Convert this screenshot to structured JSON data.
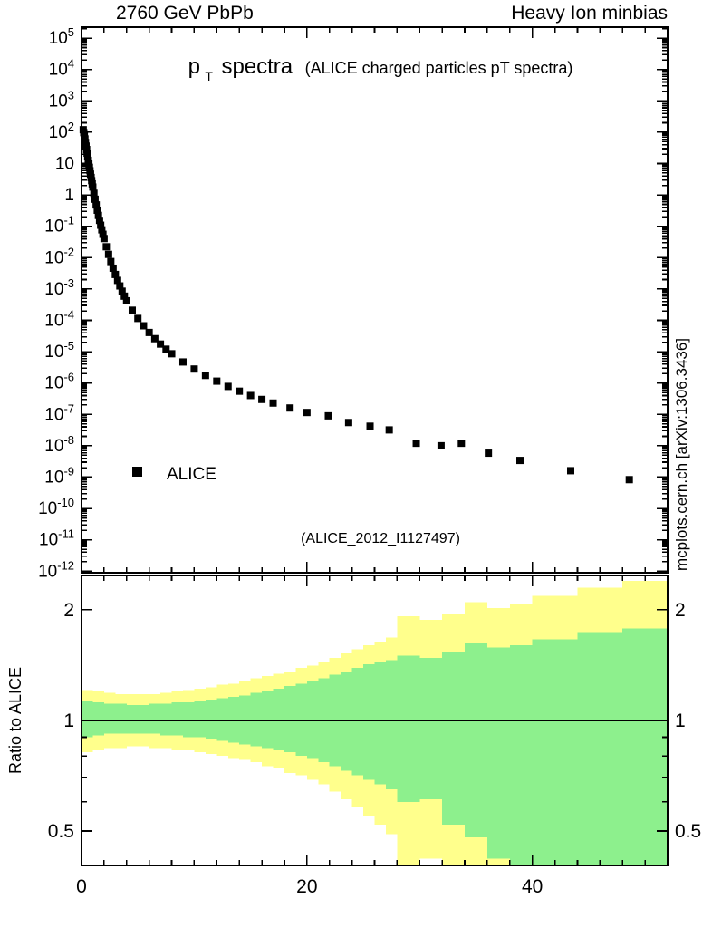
{
  "header": {
    "left": "2760 GeV PbPb",
    "right": "Heavy Ion minbias"
  },
  "title": {
    "p": "p",
    "sub": "T",
    "main": "spectra",
    "detail": "(ALICE charged particles pT spectra)"
  },
  "legend": {
    "label": "ALICE"
  },
  "watermark": "(ALICE_2012_I1127497)",
  "side_note": "mcplots.cern.ch [arXiv:1306.3436]",
  "ratio_ylabel": "Ratio to ALICE",
  "colors": {
    "marker": "#000000",
    "band_outer": "#ffff8c",
    "band_inner": "#8df08d",
    "frame": "#000000",
    "watermark": "#b5b5b5",
    "side_note": "#8f8f8f"
  },
  "chart_data": {
    "type": "scatter",
    "title": "pT spectra (ALICE charged particles pT spectra)",
    "panels": [
      {
        "name": "spectrum",
        "type": "scatter",
        "xlim": [
          0,
          52
        ],
        "ylog": true,
        "ylim": [
          1e-12,
          100000.0
        ],
        "xticks": [
          0,
          20,
          40
        ],
        "x_minor_step": 2,
        "legend_position": "left-middle",
        "series": [
          {
            "name": "ALICE",
            "marker": "filled-square",
            "color": "#000000",
            "points": [
              [
                0.15,
                120
              ],
              [
                0.2,
                97
              ],
              [
                0.25,
                78
              ],
              [
                0.3,
                61
              ],
              [
                0.35,
                47
              ],
              [
                0.4,
                36
              ],
              [
                0.45,
                28
              ],
              [
                0.5,
                21.5
              ],
              [
                0.55,
                16.5
              ],
              [
                0.6,
                12.7
              ],
              [
                0.65,
                9.8
              ],
              [
                0.7,
                7.6
              ],
              [
                0.75,
                5.9
              ],
              [
                0.8,
                4.6
              ],
              [
                0.85,
                3.6
              ],
              [
                0.9,
                2.85
              ],
              [
                0.95,
                2.25
              ],
              [
                1.0,
                1.78
              ],
              [
                1.1,
                1.13
              ],
              [
                1.2,
                0.73
              ],
              [
                1.3,
                0.48
              ],
              [
                1.4,
                0.325
              ],
              [
                1.5,
                0.222
              ],
              [
                1.6,
                0.154
              ],
              [
                1.7,
                0.108
              ],
              [
                1.8,
                0.077
              ],
              [
                1.9,
                0.0555
              ],
              [
                2.0,
                0.0405
              ],
              [
                2.2,
                0.0222
              ],
              [
                2.4,
                0.0127
              ],
              [
                2.6,
                0.0075
              ],
              [
                2.8,
                0.0046
              ],
              [
                3.0,
                0.0029
              ],
              [
                3.2,
                0.00188
              ],
              [
                3.4,
                0.00125
              ],
              [
                3.6,
                0.00085
              ],
              [
                3.8,
                0.00059
              ],
              [
                4.0,
                0.00042
              ],
              [
                4.5,
                0.00021
              ],
              [
                5.0,
                0.000115
              ],
              [
                5.5,
                6.7e-05
              ],
              [
                6.0,
                4.1e-05
              ],
              [
                6.5,
                2.6e-05
              ],
              [
                7.0,
                1.75e-05
              ],
              [
                7.5,
                1.2e-05
              ],
              [
                8.0,
                8.6e-06
              ],
              [
                9.0,
                4.7e-06
              ],
              [
                10.0,
                2.8e-06
              ],
              [
                11.0,
                1.75e-06
              ],
              [
                12.0,
                1.15e-06
              ],
              [
                13.0,
                7.8e-07
              ],
              [
                14.0,
                5.5e-07
              ],
              [
                15.0,
                4e-07
              ],
              [
                16.0,
                3e-07
              ],
              [
                17.0,
                2.3e-07
              ],
              [
                18.5,
                1.6e-07
              ],
              [
                20.0,
                1.15e-07
              ],
              [
                21.9,
                9e-08
              ],
              [
                23.7,
                5.5e-08
              ],
              [
                25.6,
                4.2e-08
              ],
              [
                27.3,
                3.2e-08
              ],
              [
                29.7,
                1.2e-08
              ],
              [
                31.9,
                1e-08
              ],
              [
                33.7,
                1.2e-08
              ],
              [
                36.1,
                5.8e-09
              ],
              [
                38.9,
                3.4e-09
              ],
              [
                43.4,
                1.6e-09
              ],
              [
                48.6,
                8.3e-10
              ]
            ]
          }
        ]
      },
      {
        "name": "ratio",
        "type": "band-steps",
        "ylabel": "Ratio to ALICE",
        "xlim": [
          0,
          52
        ],
        "ylog": true,
        "ylim": [
          0.403,
          2.48
        ],
        "yticks": [
          0.5,
          1,
          2
        ],
        "y_minor_ticks": [
          0.6,
          0.7,
          0.8,
          0.9
        ],
        "xticks": [
          0,
          20,
          40
        ],
        "x_minor_step": 2,
        "reference_line": 1.0,
        "bands": [
          {
            "x0": 0,
            "x1": 1,
            "outer": [
              0.82,
              1.21
            ],
            "inner": [
              0.9,
              1.13
            ]
          },
          {
            "x0": 1,
            "x1": 2,
            "outer": [
              0.83,
              1.2
            ],
            "inner": [
              0.91,
              1.12
            ]
          },
          {
            "x0": 2,
            "x1": 3,
            "outer": [
              0.84,
              1.19
            ],
            "inner": [
              0.92,
              1.11
            ]
          },
          {
            "x0": 3,
            "x1": 4,
            "outer": [
              0.84,
              1.18
            ],
            "inner": [
              0.92,
              1.11
            ]
          },
          {
            "x0": 4,
            "x1": 5,
            "outer": [
              0.85,
              1.18
            ],
            "inner": [
              0.92,
              1.1
            ]
          },
          {
            "x0": 5,
            "x1": 6,
            "outer": [
              0.85,
              1.18
            ],
            "inner": [
              0.92,
              1.1
            ]
          },
          {
            "x0": 6,
            "x1": 7,
            "outer": [
              0.84,
              1.18
            ],
            "inner": [
              0.92,
              1.11
            ]
          },
          {
            "x0": 7,
            "x1": 8,
            "outer": [
              0.84,
              1.19
            ],
            "inner": [
              0.91,
              1.11
            ]
          },
          {
            "x0": 8,
            "x1": 9,
            "outer": [
              0.83,
              1.2
            ],
            "inner": [
              0.91,
              1.12
            ]
          },
          {
            "x0": 9,
            "x1": 10,
            "outer": [
              0.83,
              1.21
            ],
            "inner": [
              0.9,
              1.12
            ]
          },
          {
            "x0": 10,
            "x1": 11,
            "outer": [
              0.82,
              1.22
            ],
            "inner": [
              0.9,
              1.13
            ]
          },
          {
            "x0": 11,
            "x1": 12,
            "outer": [
              0.81,
              1.23
            ],
            "inner": [
              0.89,
              1.14
            ]
          },
          {
            "x0": 12,
            "x1": 13,
            "outer": [
              0.8,
              1.25
            ],
            "inner": [
              0.88,
              1.15
            ]
          },
          {
            "x0": 13,
            "x1": 14,
            "outer": [
              0.79,
              1.26
            ],
            "inner": [
              0.87,
              1.16
            ]
          },
          {
            "x0": 14,
            "x1": 15,
            "outer": [
              0.78,
              1.28
            ],
            "inner": [
              0.86,
              1.17
            ]
          },
          {
            "x0": 15,
            "x1": 16,
            "outer": [
              0.77,
              1.3
            ],
            "inner": [
              0.85,
              1.19
            ]
          },
          {
            "x0": 16,
            "x1": 17,
            "outer": [
              0.75,
              1.32
            ],
            "inner": [
              0.84,
              1.2
            ]
          },
          {
            "x0": 17,
            "x1": 18,
            "outer": [
              0.74,
              1.34
            ],
            "inner": [
              0.83,
              1.22
            ]
          },
          {
            "x0": 18,
            "x1": 19,
            "outer": [
              0.72,
              1.36
            ],
            "inner": [
              0.82,
              1.24
            ]
          },
          {
            "x0": 19,
            "x1": 20,
            "outer": [
              0.71,
              1.39
            ],
            "inner": [
              0.8,
              1.26
            ]
          },
          {
            "x0": 20,
            "x1": 21,
            "outer": [
              0.69,
              1.41
            ],
            "inner": [
              0.79,
              1.28
            ]
          },
          {
            "x0": 21,
            "x1": 22,
            "outer": [
              0.67,
              1.44
            ],
            "inner": [
              0.77,
              1.3
            ]
          },
          {
            "x0": 22,
            "x1": 23,
            "outer": [
              0.64,
              1.48
            ],
            "inner": [
              0.75,
              1.33
            ]
          },
          {
            "x0": 23,
            "x1": 24,
            "outer": [
              0.61,
              1.52
            ],
            "inner": [
              0.73,
              1.36
            ]
          },
          {
            "x0": 24,
            "x1": 25,
            "outer": [
              0.58,
              1.56
            ],
            "inner": [
              0.71,
              1.39
            ]
          },
          {
            "x0": 25,
            "x1": 26,
            "outer": [
              0.55,
              1.6
            ],
            "inner": [
              0.69,
              1.42
            ]
          },
          {
            "x0": 26,
            "x1": 27,
            "outer": [
              0.52,
              1.64
            ],
            "inner": [
              0.67,
              1.44
            ]
          },
          {
            "x0": 27,
            "x1": 28,
            "outer": [
              0.49,
              1.68
            ],
            "inner": [
              0.65,
              1.46
            ]
          },
          {
            "x0": 28,
            "x1": 30,
            "outer": [
              0.4,
              1.92
            ],
            "inner": [
              0.6,
              1.5
            ]
          },
          {
            "x0": 30,
            "x1": 32,
            "outer": [
              0.42,
              1.88
            ],
            "inner": [
              0.61,
              1.48
            ]
          },
          {
            "x0": 32,
            "x1": 34,
            "outer": [
              0.38,
              1.95
            ],
            "inner": [
              0.52,
              1.54
            ]
          },
          {
            "x0": 34,
            "x1": 36,
            "outer": [
              0.35,
              2.1
            ],
            "inner": [
              0.48,
              1.62
            ]
          },
          {
            "x0": 36,
            "x1": 38,
            "outer": [
              0.37,
              2.02
            ],
            "inner": [
              0.42,
              1.58
            ]
          },
          {
            "x0": 38,
            "x1": 40,
            "outer": [
              0.36,
              2.08
            ],
            "inner": [
              0.38,
              1.6
            ]
          },
          {
            "x0": 40,
            "x1": 44,
            "outer": [
              0.34,
              2.18
            ],
            "inner": [
              0.36,
              1.66
            ]
          },
          {
            "x0": 44,
            "x1": 48,
            "outer": [
              0.33,
              2.3
            ],
            "inner": [
              0.34,
              1.74
            ]
          },
          {
            "x0": 48,
            "x1": 52,
            "outer": [
              0.33,
              2.4
            ],
            "inner": [
              0.34,
              1.78
            ]
          }
        ]
      }
    ]
  }
}
